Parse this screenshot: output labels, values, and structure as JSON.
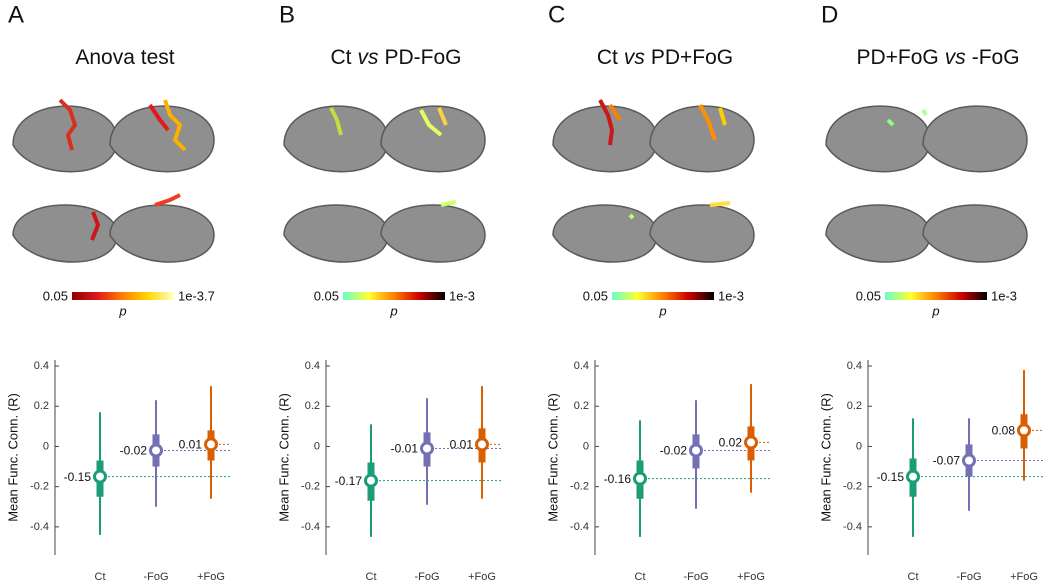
{
  "panels": [
    {
      "letter": "A",
      "title": [
        {
          "text": "Anova test"
        }
      ],
      "colorbar": {
        "min_label": "0.05",
        "max_label": "1e-3.7",
        "label": "p",
        "colors": [
          "#8b0000",
          "#e31a1c",
          "#ff7f00",
          "#ffd700",
          "#ffffcc"
        ]
      }
    },
    {
      "letter": "B",
      "title": [
        {
          "text": "Ct"
        },
        {
          "text": "vs",
          "italic": true
        },
        {
          "text": "PD-FoG"
        }
      ],
      "colorbar": {
        "min_label": "0.05",
        "max_label": "1e-3",
        "label": "p",
        "colors": [
          "#66ffcc",
          "#ffff33",
          "#ff8000",
          "#cc0000",
          "#000000"
        ]
      }
    },
    {
      "letter": "C",
      "title": [
        {
          "text": "Ct"
        },
        {
          "text": "vs",
          "italic": true
        },
        {
          "text": "PD+FoG"
        }
      ],
      "colorbar": {
        "min_label": "0.05",
        "max_label": "1e-3",
        "label": "p",
        "colors": [
          "#66ffcc",
          "#ffff33",
          "#ff8000",
          "#cc0000",
          "#000000"
        ]
      }
    },
    {
      "letter": "D",
      "title": [
        {
          "text": "PD+FoG"
        },
        {
          "text": "vs",
          "italic": true
        },
        {
          "text": "-FoG"
        }
      ],
      "colorbar": {
        "min_label": "0.05",
        "max_label": "1e-3",
        "label": "p",
        "colors": [
          "#66ffcc",
          "#ffff33",
          "#ff8000",
          "#cc0000",
          "#000000"
        ]
      }
    }
  ],
  "chart_data": [
    {
      "type": "box",
      "ylabel": "Mean Func. Conn. (R)",
      "categories": [
        "Ct",
        "-FoG",
        "+FoG"
      ],
      "colors": [
        "#1b9e77",
        "#7570b3",
        "#d95f02"
      ],
      "median": [
        -0.15,
        -0.02,
        0.01
      ],
      "q1": [
        -0.25,
        -0.1,
        -0.07
      ],
      "q3": [
        -0.07,
        0.06,
        0.08
      ],
      "whisker_low": [
        -0.44,
        -0.3,
        -0.26
      ],
      "whisker_high": [
        0.17,
        0.23,
        0.3
      ],
      "ylim": [
        -0.54,
        0.43
      ],
      "yticks": [
        -0.4,
        -0.2,
        0,
        0.2,
        0.4
      ]
    },
    {
      "type": "box",
      "ylabel": "Mean Func. Conn. (R)",
      "categories": [
        "Ct",
        "-FoG",
        "+FoG"
      ],
      "colors": [
        "#1b9e77",
        "#7570b3",
        "#d95f02"
      ],
      "median": [
        -0.17,
        -0.01,
        0.01
      ],
      "q1": [
        -0.27,
        -0.1,
        -0.08
      ],
      "q3": [
        -0.08,
        0.07,
        0.09
      ],
      "whisker_low": [
        -0.45,
        -0.29,
        -0.26
      ],
      "whisker_high": [
        0.11,
        0.24,
        0.3
      ],
      "ylim": [
        -0.54,
        0.43
      ],
      "yticks": [
        -0.4,
        -0.2,
        0,
        0.2,
        0.4
      ]
    },
    {
      "type": "box",
      "ylabel": "Mean Func. Conn. (R)",
      "categories": [
        "Ct",
        "-FoG",
        "+FoG"
      ],
      "colors": [
        "#1b9e77",
        "#7570b3",
        "#d95f02"
      ],
      "median": [
        -0.16,
        -0.02,
        0.02
      ],
      "q1": [
        -0.26,
        -0.11,
        -0.07
      ],
      "q3": [
        -0.07,
        0.06,
        0.1
      ],
      "whisker_low": [
        -0.45,
        -0.31,
        -0.23
      ],
      "whisker_high": [
        0.13,
        0.23,
        0.31
      ],
      "ylim": [
        -0.54,
        0.43
      ],
      "yticks": [
        -0.4,
        -0.2,
        0,
        0.2,
        0.4
      ]
    },
    {
      "type": "box",
      "ylabel": "Mean Func. Conn. (R)",
      "categories": [
        "Ct",
        "-FoG",
        "+FoG"
      ],
      "colors": [
        "#1b9e77",
        "#7570b3",
        "#d95f02"
      ],
      "median": [
        -0.15,
        -0.07,
        0.08
      ],
      "q1": [
        -0.25,
        -0.15,
        -0.01
      ],
      "q3": [
        -0.06,
        0.01,
        0.16
      ],
      "whisker_low": [
        -0.45,
        -0.32,
        -0.17
      ],
      "whisker_high": [
        0.14,
        0.14,
        0.38
      ],
      "ylim": [
        -0.54,
        0.43
      ],
      "yticks": [
        -0.4,
        -0.2,
        0,
        0.2,
        0.4
      ]
    }
  ]
}
